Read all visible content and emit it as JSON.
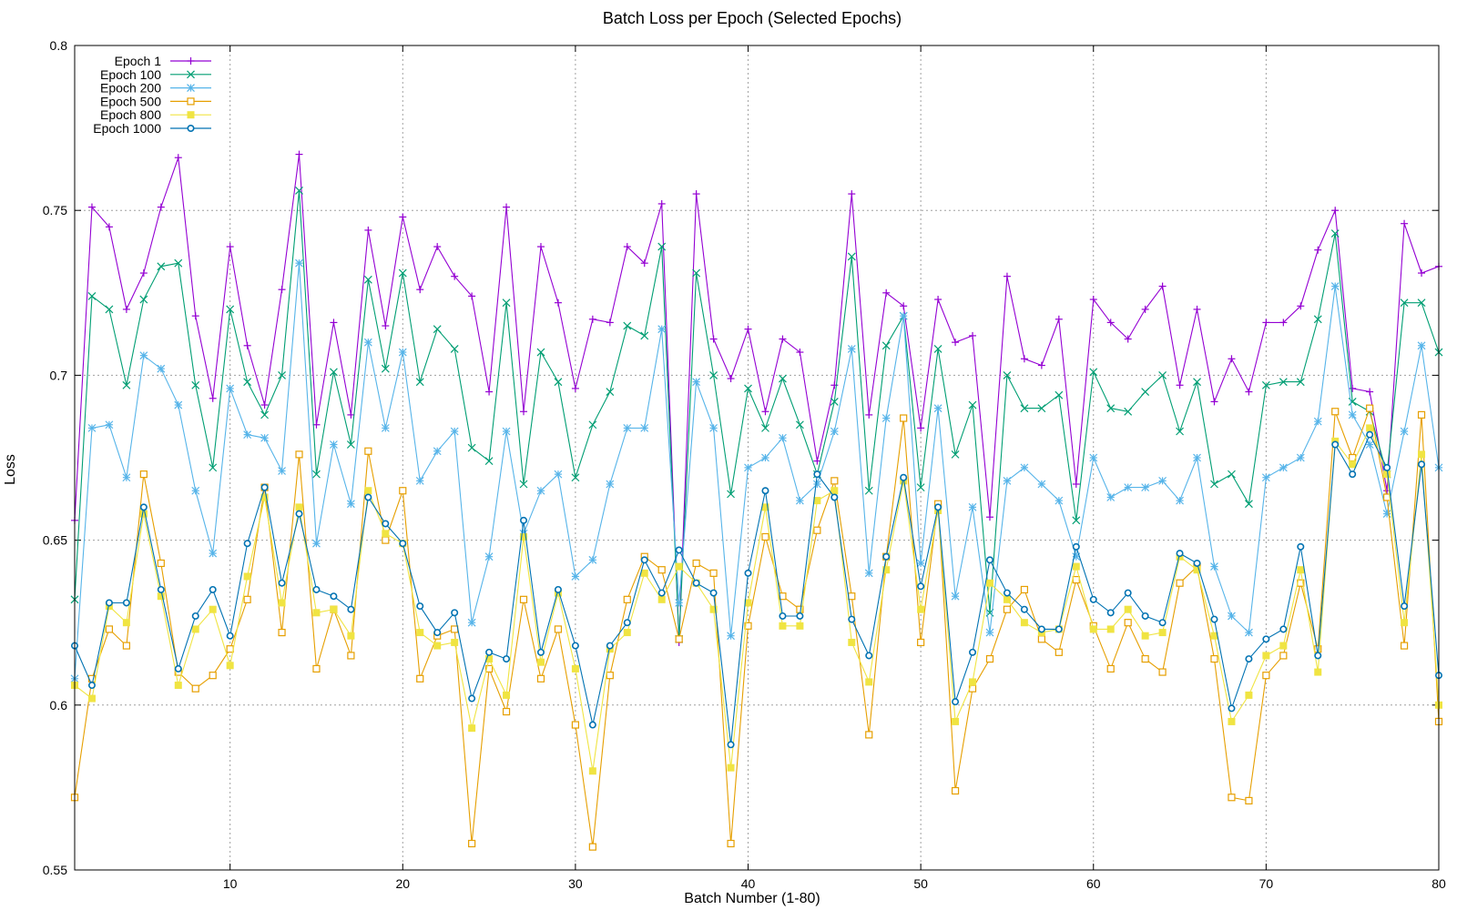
{
  "chart_data": {
    "type": "line",
    "title": "Batch Loss per Epoch (Selected Epochs)",
    "xlabel": "Batch Number (1-80)",
    "ylabel": "Loss",
    "xlim": [
      1,
      80
    ],
    "ylim": [
      0.55,
      0.8
    ],
    "xticks": [
      10,
      20,
      30,
      40,
      50,
      60,
      70,
      80
    ],
    "yticks": [
      0.55,
      0.6,
      0.65,
      0.7,
      0.75,
      0.8
    ],
    "grid": true,
    "legend_position": "top-left",
    "x": [
      1,
      2,
      3,
      4,
      5,
      6,
      7,
      8,
      9,
      10,
      11,
      12,
      13,
      14,
      15,
      16,
      17,
      18,
      19,
      20,
      21,
      22,
      23,
      24,
      25,
      26,
      27,
      28,
      29,
      30,
      31,
      32,
      33,
      34,
      35,
      36,
      37,
      38,
      39,
      40,
      41,
      42,
      43,
      44,
      45,
      46,
      47,
      48,
      49,
      50,
      51,
      52,
      53,
      54,
      55,
      56,
      57,
      58,
      59,
      60,
      61,
      62,
      63,
      64,
      65,
      66,
      67,
      68,
      69,
      70,
      71,
      72,
      73,
      74,
      75,
      76,
      77,
      78,
      79,
      80
    ],
    "series": [
      {
        "name": "Epoch 1",
        "color": "#9400d3",
        "marker": "plus",
        "values": [
          0.656,
          0.751,
          0.745,
          0.72,
          0.731,
          0.751,
          0.766,
          0.718,
          0.693,
          0.739,
          0.709,
          0.691,
          0.726,
          0.767,
          0.685,
          0.716,
          0.688,
          0.744,
          0.715,
          0.748,
          0.726,
          0.739,
          0.73,
          0.724,
          0.695,
          0.751,
          0.689,
          0.739,
          0.722,
          0.696,
          0.717,
          0.716,
          0.739,
          0.734,
          0.752,
          0.619,
          0.755,
          0.711,
          0.699,
          0.714,
          0.689,
          0.711,
          0.707,
          0.674,
          0.697,
          0.755,
          0.688,
          0.725,
          0.721,
          0.684,
          0.723,
          0.71,
          0.712,
          0.657,
          0.73,
          0.705,
          0.703,
          0.717,
          0.667,
          0.723,
          0.716,
          0.711,
          0.72,
          0.727,
          0.697,
          0.72,
          0.692,
          0.705,
          0.695,
          0.716,
          0.716,
          0.721,
          0.738,
          0.75,
          0.696,
          0.695,
          0.665,
          0.746,
          0.731,
          0.733
        ]
      },
      {
        "name": "Epoch 100",
        "color": "#009e73",
        "marker": "x",
        "values": [
          0.632,
          0.724,
          0.72,
          0.697,
          0.723,
          0.733,
          0.734,
          0.697,
          0.672,
          0.72,
          0.698,
          0.688,
          0.7,
          0.756,
          0.67,
          0.701,
          0.679,
          0.729,
          0.702,
          0.731,
          0.698,
          0.714,
          0.708,
          0.678,
          0.674,
          0.722,
          0.667,
          0.707,
          0.698,
          0.669,
          0.685,
          0.695,
          0.715,
          0.712,
          0.739,
          0.62,
          0.731,
          0.7,
          0.664,
          0.696,
          0.684,
          0.699,
          0.685,
          0.67,
          0.692,
          0.736,
          0.665,
          0.709,
          0.718,
          0.666,
          0.708,
          0.676,
          0.691,
          0.628,
          0.7,
          0.69,
          0.69,
          0.694,
          0.656,
          0.701,
          0.69,
          0.689,
          0.695,
          0.7,
          0.683,
          0.698,
          0.667,
          0.67,
          0.661,
          0.697,
          0.698,
          0.698,
          0.717,
          0.743,
          0.692,
          0.689,
          0.67,
          0.722,
          0.722,
          0.707
        ]
      },
      {
        "name": "Epoch 200",
        "color": "#56b4e9",
        "marker": "star",
        "values": [
          0.608,
          0.684,
          0.685,
          0.669,
          0.706,
          0.702,
          0.691,
          0.665,
          0.646,
          0.696,
          0.682,
          0.681,
          0.671,
          0.734,
          0.649,
          0.679,
          0.661,
          0.71,
          0.684,
          0.707,
          0.668,
          0.677,
          0.683,
          0.625,
          0.645,
          0.683,
          0.652,
          0.665,
          0.67,
          0.639,
          0.644,
          0.667,
          0.684,
          0.684,
          0.714,
          0.631,
          0.698,
          0.684,
          0.621,
          0.672,
          0.675,
          0.681,
          0.662,
          0.667,
          0.683,
          0.708,
          0.64,
          0.687,
          0.718,
          0.643,
          0.69,
          0.633,
          0.66,
          0.622,
          0.668,
          0.672,
          0.667,
          0.662,
          0.645,
          0.675,
          0.663,
          0.666,
          0.666,
          0.668,
          0.662,
          0.675,
          0.642,
          0.627,
          0.622,
          0.669,
          0.672,
          0.675,
          0.686,
          0.727,
          0.688,
          0.679,
          0.658,
          0.683,
          0.709,
          0.672
        ]
      },
      {
        "name": "Epoch 500",
        "color": "#e69f00",
        "marker": "open-square",
        "values": [
          0.572,
          0.608,
          0.623,
          0.618,
          0.67,
          0.643,
          0.61,
          0.605,
          0.609,
          0.617,
          0.632,
          0.666,
          0.622,
          0.676,
          0.611,
          0.629,
          0.615,
          0.677,
          0.65,
          0.665,
          0.608,
          0.621,
          0.623,
          0.558,
          0.611,
          0.598,
          0.632,
          0.608,
          0.623,
          0.594,
          0.557,
          0.609,
          0.632,
          0.645,
          0.641,
          0.62,
          0.643,
          0.64,
          0.558,
          0.624,
          0.651,
          0.633,
          0.629,
          0.653,
          0.668,
          0.633,
          0.591,
          0.645,
          0.687,
          0.619,
          0.661,
          0.574,
          0.605,
          0.614,
          0.629,
          0.635,
          0.62,
          0.616,
          0.638,
          0.624,
          0.611,
          0.625,
          0.614,
          0.61,
          0.637,
          0.642,
          0.614,
          0.572,
          0.571,
          0.609,
          0.615,
          0.637,
          0.617,
          0.689,
          0.675,
          0.69,
          0.663,
          0.618,
          0.688,
          0.595
        ]
      },
      {
        "name": "Epoch 800",
        "color": "#f0e442",
        "marker": "filled-square",
        "values": [
          0.606,
          0.602,
          0.63,
          0.625,
          0.658,
          0.633,
          0.606,
          0.623,
          0.629,
          0.612,
          0.639,
          0.663,
          0.631,
          0.66,
          0.628,
          0.629,
          0.621,
          0.665,
          0.652,
          0.649,
          0.622,
          0.618,
          0.619,
          0.593,
          0.614,
          0.603,
          0.651,
          0.613,
          0.634,
          0.611,
          0.58,
          0.617,
          0.622,
          0.64,
          0.632,
          0.642,
          0.637,
          0.629,
          0.581,
          0.631,
          0.66,
          0.624,
          0.624,
          0.662,
          0.665,
          0.619,
          0.607,
          0.641,
          0.668,
          0.629,
          0.659,
          0.595,
          0.607,
          0.637,
          0.632,
          0.625,
          0.622,
          0.623,
          0.642,
          0.623,
          0.623,
          0.629,
          0.621,
          0.622,
          0.645,
          0.641,
          0.621,
          0.595,
          0.603,
          0.615,
          0.618,
          0.641,
          0.61,
          0.68,
          0.673,
          0.684,
          0.67,
          0.625,
          0.676,
          0.6
        ]
      },
      {
        "name": "Epoch 1000",
        "color": "#0072b2",
        "marker": "circle",
        "values": [
          0.618,
          0.606,
          0.631,
          0.631,
          0.66,
          0.635,
          0.611,
          0.627,
          0.635,
          0.621,
          0.649,
          0.666,
          0.637,
          0.658,
          0.635,
          0.633,
          0.629,
          0.663,
          0.655,
          0.649,
          0.63,
          0.622,
          0.628,
          0.602,
          0.616,
          0.614,
          0.656,
          0.616,
          0.635,
          0.618,
          0.594,
          0.618,
          0.625,
          0.644,
          0.634,
          0.647,
          0.637,
          0.634,
          0.588,
          0.64,
          0.665,
          0.627,
          0.627,
          0.67,
          0.663,
          0.626,
          0.615,
          0.645,
          0.669,
          0.636,
          0.66,
          0.601,
          0.616,
          0.644,
          0.634,
          0.629,
          0.623,
          0.623,
          0.648,
          0.632,
          0.628,
          0.634,
          0.627,
          0.625,
          0.646,
          0.643,
          0.626,
          0.599,
          0.614,
          0.62,
          0.623,
          0.648,
          0.615,
          0.679,
          0.67,
          0.682,
          0.672,
          0.63,
          0.673,
          0.609
        ]
      }
    ]
  }
}
